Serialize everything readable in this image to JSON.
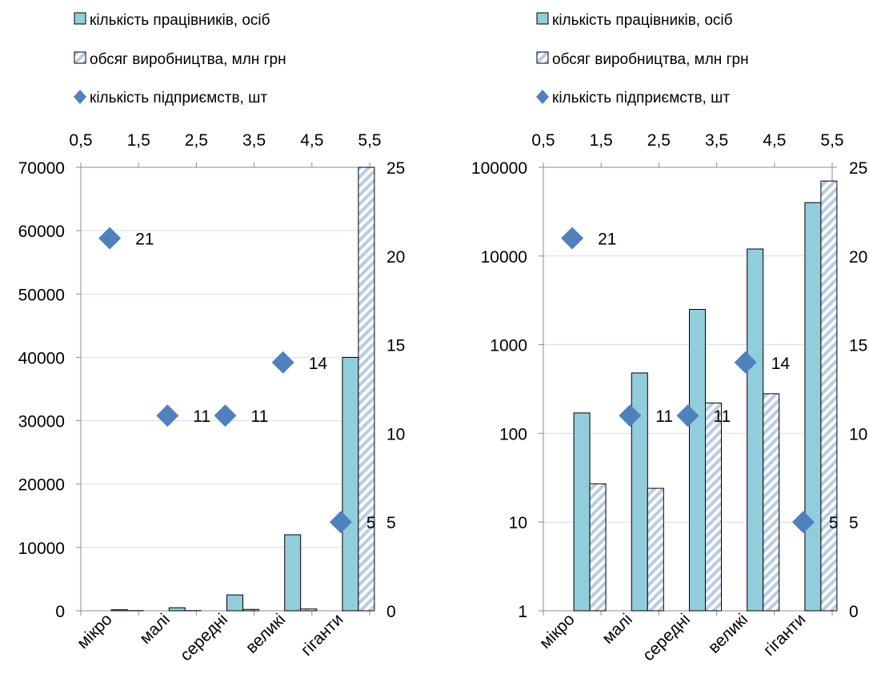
{
  "colors": {
    "bar_employees": "#92CDDC",
    "bar_production_stripe": "#B7CCE4",
    "marker_enterprises": "#4F81BD",
    "gridline": "#D9DCEE",
    "axis": "#8C8C8C"
  },
  "chart_data": [
    {
      "type": "bar",
      "categories": [
        "мікро",
        "малі",
        "середні",
        "великі",
        "гіганти"
      ],
      "legend": [
        {
          "label": "кількість працівників, осіб",
          "marker": "bar-solid"
        },
        {
          "label": "обсяг виробництва, млн грн",
          "marker": "bar-striped"
        },
        {
          "label": "кількість підприємств, шт",
          "marker": "diamond"
        }
      ],
      "series": [
        {
          "name": "кількість працівників, осіб",
          "axis": "left",
          "values": [
            170,
            480,
            2500,
            12000,
            40000
          ]
        },
        {
          "name": "обсяг виробництва, млн грн",
          "axis": "left",
          "values": [
            27,
            24,
            220,
            280,
            70000
          ]
        },
        {
          "name": "кількість підприємств, шт",
          "axis": "right",
          "type": "scatter",
          "x": [
            1,
            2,
            3,
            4,
            5
          ],
          "values": [
            21,
            11,
            11,
            14,
            5
          ],
          "data_labels": [
            "21",
            "11",
            "11",
            "14",
            "5"
          ]
        }
      ],
      "left_axis": {
        "scale": "linear",
        "range": [
          0,
          70000
        ],
        "ticks": [
          "0",
          "10000",
          "20000",
          "30000",
          "40000",
          "50000",
          "60000",
          "70000"
        ]
      },
      "right_axis": {
        "range": [
          0,
          25
        ],
        "ticks": [
          "0",
          "5",
          "10",
          "15",
          "20",
          "25"
        ]
      },
      "top_axis": {
        "range": [
          0.5,
          5.5
        ],
        "ticks": [
          "0,5",
          "1,5",
          "2,5",
          "3,5",
          "4,5",
          "5,5"
        ]
      },
      "grid": true
    },
    {
      "type": "bar",
      "categories": [
        "мікро",
        "малі",
        "середні",
        "великі",
        "гіганти"
      ],
      "legend": [
        {
          "label": "кількість працівників, осіб",
          "marker": "bar-solid"
        },
        {
          "label": "обсяг виробництва, млн грн",
          "marker": "bar-striped"
        },
        {
          "label": "кількість підприємств, шт",
          "marker": "diamond"
        }
      ],
      "series": [
        {
          "name": "кількість працівників, осіб",
          "axis": "left",
          "values": [
            170,
            480,
            2500,
            12000,
            40000
          ]
        },
        {
          "name": "обсяг виробництва, млн грн",
          "axis": "left",
          "values": [
            27,
            24,
            220,
            280,
            70000
          ]
        },
        {
          "name": "кількість підприємств, шт",
          "axis": "right",
          "type": "scatter",
          "x": [
            1,
            2,
            3,
            4,
            5
          ],
          "values": [
            21,
            11,
            11,
            14,
            5
          ],
          "data_labels": [
            "21",
            "11",
            "11",
            "14",
            "5"
          ]
        }
      ],
      "left_axis": {
        "scale": "log",
        "range": [
          1,
          100000
        ],
        "ticks": [
          "1",
          "10",
          "100",
          "1000",
          "10000",
          "100000"
        ]
      },
      "right_axis": {
        "range": [
          0,
          25
        ],
        "ticks": [
          "0",
          "5",
          "10",
          "15",
          "20",
          "25"
        ]
      },
      "top_axis": {
        "range": [
          0.5,
          5.5
        ],
        "ticks": [
          "0,5",
          "1,5",
          "2,5",
          "3,5",
          "4,5",
          "5,5"
        ]
      },
      "grid": true
    }
  ]
}
